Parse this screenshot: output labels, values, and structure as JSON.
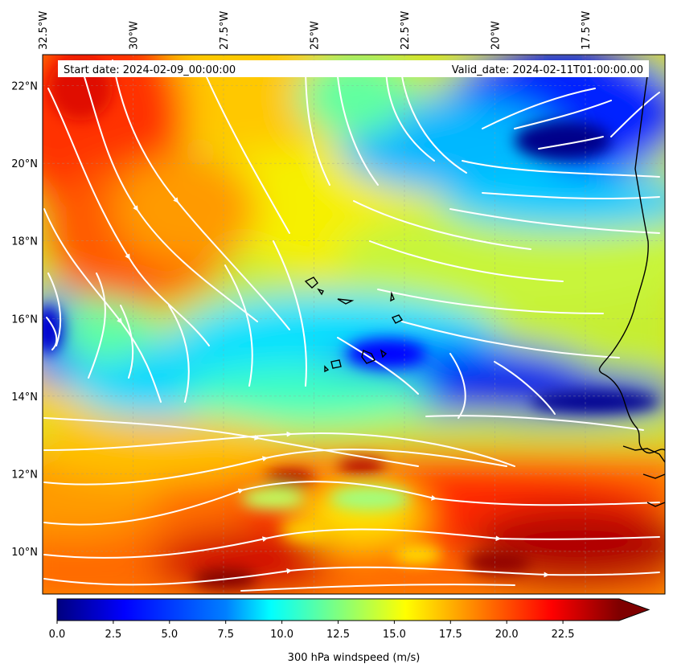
{
  "map": {
    "start_label": "Start date: 2024-02-09_00:00:00",
    "valid_label": "Valid_date: 2024-02-11T01:00:00.00",
    "lon_labels": [
      "32.5°W",
      "30°W",
      "27.5°W",
      "25°W",
      "22.5°W",
      "20°W",
      "17.5°W"
    ],
    "lon_values": [
      -32.5,
      -30,
      -27.5,
      -25,
      -22.5,
      -20,
      -17.5
    ],
    "lat_labels": [
      "22°N",
      "20°N",
      "18°N",
      "16°N",
      "14°N",
      "12°N",
      "10°N"
    ],
    "lat_values": [
      22,
      20,
      18,
      16,
      14,
      12,
      10
    ],
    "lon_range": [
      -32.5,
      -15.3
    ],
    "lat_range": [
      8.9,
      22.8
    ],
    "streamline_color": "#ffffff",
    "coastline_color": "#000000"
  },
  "colorbar": {
    "label": "300 hPa windspeed (m/s)",
    "tick_labels": [
      "0.0",
      "2.5",
      "5.0",
      "7.5",
      "10.0",
      "12.5",
      "15.0",
      "17.5",
      "20.0",
      "22.5"
    ],
    "tick_values": [
      0,
      2.5,
      5,
      7.5,
      10,
      12.5,
      15,
      17.5,
      20,
      22.5
    ],
    "range": [
      0,
      25
    ],
    "extend": "max",
    "colormap": "jet",
    "colormap_stops": [
      "#00007f",
      "#0000ff",
      "#007fff",
      "#00ffff",
      "#7fff7f",
      "#ffff00",
      "#ff7f00",
      "#ff0000",
      "#7f0000"
    ]
  }
}
